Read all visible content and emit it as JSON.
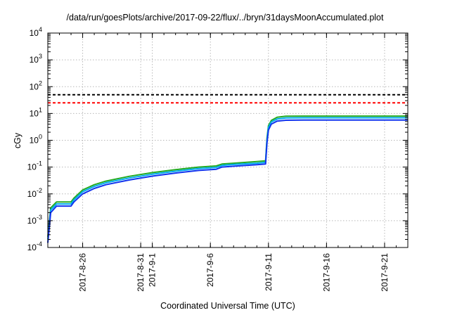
{
  "chart_data": {
    "type": "line",
    "title": "/data/run/goesPlots/archive/2017-09-22/flux/../bryn/31daysMoonAccumulated.plot",
    "xlabel": "Coordinated Universal Time (UTC)",
    "ylabel": "cGy",
    "yscale": "log",
    "ylim": [
      0.0001,
      10000
    ],
    "xlim": [
      "2017-08-23",
      "2017-09-23"
    ],
    "grid": true,
    "x_ticks": [
      "2017-8-26",
      "2017-8-31",
      "2017-9-1",
      "2017-9-6",
      "2017-9-11",
      "2017-9-16",
      "2017-9-21"
    ],
    "y_ticks": [
      {
        "base": "10",
        "exp": "-4"
      },
      {
        "base": "10",
        "exp": "-3"
      },
      {
        "base": "10",
        "exp": "-2"
      },
      {
        "base": "10",
        "exp": "-1"
      },
      {
        "base": "10",
        "exp": "0"
      },
      {
        "base": "10",
        "exp": "1"
      },
      {
        "base": "10",
        "exp": "2"
      },
      {
        "base": "10",
        "exp": "3"
      },
      {
        "base": "10",
        "exp": "4"
      }
    ],
    "thresholds": [
      {
        "value": 50,
        "color": "#000000",
        "style": "dashed"
      },
      {
        "value": 25,
        "color": "#ff0000",
        "style": "dashed"
      }
    ],
    "x": [
      "2017-08-23",
      "2017-08-23T06:00",
      "2017-08-23T18:00",
      "2017-08-24",
      "2017-08-25",
      "2017-08-25T06:00",
      "2017-08-26",
      "2017-08-27",
      "2017-08-28",
      "2017-08-30",
      "2017-09-01",
      "2017-09-03",
      "2017-09-05",
      "2017-09-06T12:00",
      "2017-09-07",
      "2017-09-08",
      "2017-09-10",
      "2017-09-10T18:00",
      "2017-09-10T21:00",
      "2017-09-11",
      "2017-09-11T06:00",
      "2017-09-11T18:00",
      "2017-09-12T12:00",
      "2017-09-14",
      "2017-09-23"
    ],
    "series": [
      {
        "color": "#22aa22",
        "values": [
          0.00025,
          0.003,
          0.005,
          0.005,
          0.005,
          0.007,
          0.014,
          0.022,
          0.03,
          0.045,
          0.062,
          0.08,
          0.1,
          0.11,
          0.13,
          0.14,
          0.16,
          0.17,
          1.2,
          3.5,
          5.5,
          7.2,
          7.9,
          8.0,
          8.0
        ]
      },
      {
        "color": "#00aaee",
        "values": [
          0.0002,
          0.0025,
          0.0042,
          0.0042,
          0.0042,
          0.006,
          0.012,
          0.019,
          0.026,
          0.039,
          0.054,
          0.07,
          0.088,
          0.097,
          0.115,
          0.125,
          0.14,
          0.15,
          1.0,
          3.0,
          4.8,
          6.2,
          6.8,
          6.9,
          6.9
        ]
      },
      {
        "color": "#1133ee",
        "values": [
          0.00015,
          0.002,
          0.0035,
          0.0035,
          0.0035,
          0.005,
          0.01,
          0.016,
          0.022,
          0.033,
          0.046,
          0.06,
          0.075,
          0.083,
          0.1,
          0.108,
          0.122,
          0.13,
          0.8,
          2.4,
          4.0,
          5.2,
          5.6,
          5.7,
          5.7
        ]
      }
    ]
  }
}
